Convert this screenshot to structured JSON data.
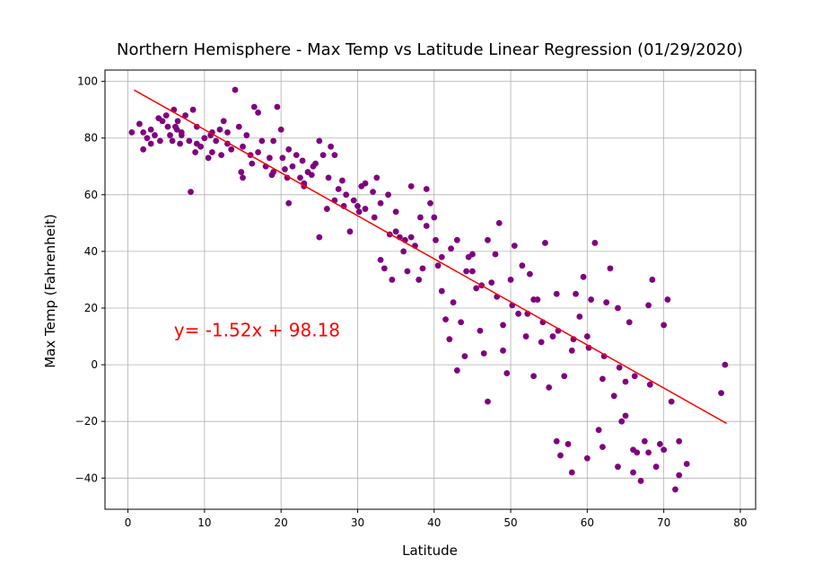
{
  "chart_data": {
    "type": "scatter",
    "title": "Northern Hemisphere - Max Temp vs Latitude Linear Regression (01/29/2020)",
    "xlabel": "Latitude",
    "ylabel": "Max Temp (Fahrenheit)",
    "xlim": [
      -3,
      82
    ],
    "ylim": [
      -51,
      104
    ],
    "xticks": [
      0,
      10,
      20,
      30,
      40,
      50,
      60,
      70,
      80
    ],
    "yticks": [
      -40,
      -20,
      0,
      20,
      40,
      60,
      80,
      100
    ],
    "grid": true,
    "point_color": "#800080",
    "line_color": "#ff0000",
    "regression": {
      "slope": -1.52,
      "intercept": 98.18,
      "x_range": [
        0.8,
        78.2
      ]
    },
    "annotation": {
      "text": "y= -1.52x + 98.18",
      "x": 6,
      "y": 10,
      "color": "#ff0000"
    },
    "points": [
      [
        0.5,
        82
      ],
      [
        1.5,
        85
      ],
      [
        2,
        82
      ],
      [
        2.5,
        80
      ],
      [
        3,
        78
      ],
      [
        3.5,
        81
      ],
      [
        4,
        87
      ],
      [
        4.5,
        86
      ],
      [
        5,
        88
      ],
      [
        5.2,
        84
      ],
      [
        5.5,
        81
      ],
      [
        5.8,
        79
      ],
      [
        6,
        90
      ],
      [
        6.2,
        84
      ],
      [
        6.5,
        86
      ],
      [
        6.8,
        78
      ],
      [
        7,
        82
      ],
      [
        7.5,
        88
      ],
      [
        8,
        79
      ],
      [
        8.2,
        61
      ],
      [
        8.5,
        90
      ],
      [
        9,
        84
      ],
      [
        9.5,
        77
      ],
      [
        10,
        80
      ],
      [
        10.5,
        73
      ],
      [
        11,
        82
      ],
      [
        11.5,
        79
      ],
      [
        12,
        83
      ],
      [
        12.5,
        86
      ],
      [
        13,
        82
      ],
      [
        13.5,
        76
      ],
      [
        14,
        97
      ],
      [
        14.5,
        84
      ],
      [
        15,
        77
      ],
      [
        15.5,
        81
      ],
      [
        16,
        74
      ],
      [
        16.5,
        91
      ],
      [
        17,
        89
      ],
      [
        17.5,
        79
      ],
      [
        18,
        70
      ],
      [
        18.5,
        73
      ],
      [
        19,
        79
      ],
      [
        19.5,
        91
      ],
      [
        20,
        83
      ],
      [
        20.5,
        69
      ],
      [
        20.8,
        66
      ],
      [
        21,
        57
      ],
      [
        21.5,
        70
      ],
      [
        22,
        74
      ],
      [
        22.5,
        66
      ],
      [
        23,
        64
      ],
      [
        23.5,
        68
      ],
      [
        24,
        67
      ],
      [
        24.5,
        71
      ],
      [
        25,
        79
      ],
      [
        25.5,
        74
      ],
      [
        26,
        55
      ],
      [
        26.5,
        77
      ],
      [
        27,
        74
      ],
      [
        27.5,
        62
      ],
      [
        28,
        65
      ],
      [
        28.5,
        60
      ],
      [
        29,
        47
      ],
      [
        29.5,
        58
      ],
      [
        30,
        56
      ],
      [
        30.5,
        63
      ],
      [
        31,
        55
      ],
      [
        32,
        61
      ],
      [
        32.5,
        66
      ],
      [
        33,
        57
      ],
      [
        33.5,
        34
      ],
      [
        34,
        60
      ],
      [
        34.5,
        30
      ],
      [
        35,
        47
      ],
      [
        35.5,
        45
      ],
      [
        36,
        40
      ],
      [
        36.5,
        33
      ],
      [
        37,
        45
      ],
      [
        37.5,
        42
      ],
      [
        38,
        30
      ],
      [
        38.5,
        34
      ],
      [
        39,
        62
      ],
      [
        39.5,
        57
      ],
      [
        40,
        52
      ],
      [
        40.5,
        35
      ],
      [
        41,
        26
      ],
      [
        41.5,
        16
      ],
      [
        42,
        9
      ],
      [
        42.5,
        22
      ],
      [
        43,
        44
      ],
      [
        43.5,
        15
      ],
      [
        44,
        3
      ],
      [
        44.5,
        38
      ],
      [
        45,
        39
      ],
      [
        45.5,
        27
      ],
      [
        46,
        12
      ],
      [
        46.5,
        4
      ],
      [
        47,
        44
      ],
      [
        47.5,
        29
      ],
      [
        48,
        39
      ],
      [
        48.5,
        50
      ],
      [
        49,
        14
      ],
      [
        49.5,
        -3
      ],
      [
        50,
        30
      ],
      [
        50.5,
        42
      ],
      [
        51,
        18
      ],
      [
        51.5,
        35
      ],
      [
        52,
        10
      ],
      [
        52.5,
        32
      ],
      [
        53,
        23
      ],
      [
        53.5,
        23
      ],
      [
        54,
        8
      ],
      [
        54.5,
        43
      ],
      [
        55,
        -8
      ],
      [
        55.5,
        10
      ],
      [
        56,
        25
      ],
      [
        56.5,
        -32
      ],
      [
        57,
        -4
      ],
      [
        57.5,
        -28
      ],
      [
        58,
        5
      ],
      [
        58.5,
        25
      ],
      [
        59,
        17
      ],
      [
        59.5,
        31
      ],
      [
        60,
        -33
      ],
      [
        60.5,
        23
      ],
      [
        61,
        43
      ],
      [
        61.5,
        -23
      ],
      [
        62,
        -29
      ],
      [
        62.5,
        22
      ],
      [
        63,
        34
      ],
      [
        63.5,
        -11
      ],
      [
        64,
        -36
      ],
      [
        64.5,
        -20
      ],
      [
        65,
        -6
      ],
      [
        65.5,
        15
      ],
      [
        66,
        -30
      ],
      [
        66.5,
        -31
      ],
      [
        67,
        -41
      ],
      [
        67.5,
        -27
      ],
      [
        68,
        -31
      ],
      [
        68.5,
        30
      ],
      [
        69,
        -36
      ],
      [
        69.5,
        -28
      ],
      [
        70,
        -30
      ],
      [
        70.5,
        23
      ],
      [
        71,
        -13
      ],
      [
        71.5,
        -44
      ],
      [
        72,
        -27
      ],
      [
        73,
        -35
      ],
      [
        77.5,
        -10
      ],
      [
        78,
        0
      ],
      [
        64,
        20
      ],
      [
        65,
        -18
      ],
      [
        66,
        -38
      ],
      [
        68,
        21
      ],
      [
        70,
        14
      ],
      [
        72,
        -39
      ],
      [
        56,
        -27
      ],
      [
        58,
        -38
      ],
      [
        60,
        10
      ],
      [
        62,
        -5
      ],
      [
        49,
        5
      ],
      [
        47,
        -13
      ],
      [
        53,
        -4
      ],
      [
        45,
        33
      ],
      [
        43,
        -2
      ],
      [
        41,
        38
      ],
      [
        39,
        49
      ],
      [
        37,
        63
      ],
      [
        35,
        54
      ],
      [
        33,
        37
      ],
      [
        31,
        64
      ],
      [
        27,
        58
      ],
      [
        25,
        45
      ],
      [
        23,
        63
      ],
      [
        21,
        76
      ],
      [
        19,
        68
      ],
      [
        17,
        75
      ],
      [
        15,
        66
      ],
      [
        13,
        78
      ],
      [
        11,
        75
      ],
      [
        9,
        78
      ],
      [
        7,
        81
      ],
      [
        3,
        83
      ],
      [
        2,
        76
      ],
      [
        4.2,
        79
      ],
      [
        6.4,
        83
      ],
      [
        8.8,
        75
      ],
      [
        10.8,
        81
      ],
      [
        12.2,
        74
      ],
      [
        14.8,
        68
      ],
      [
        16.2,
        71
      ],
      [
        18.8,
        67
      ],
      [
        20.2,
        73
      ],
      [
        22.8,
        72
      ],
      [
        24.2,
        70
      ],
      [
        26.2,
        66
      ],
      [
        28.2,
        56
      ],
      [
        30.2,
        54
      ],
      [
        32.2,
        52
      ],
      [
        34.2,
        46
      ],
      [
        36.2,
        44
      ],
      [
        38.2,
        52
      ],
      [
        40.2,
        44
      ],
      [
        42.2,
        41
      ],
      [
        44.2,
        33
      ],
      [
        46.2,
        28
      ],
      [
        48.2,
        24
      ],
      [
        50.2,
        21
      ],
      [
        52.2,
        18
      ],
      [
        54.2,
        15
      ],
      [
        56.2,
        12
      ],
      [
        58.2,
        9
      ],
      [
        60.2,
        6
      ],
      [
        62.2,
        3
      ],
      [
        64.2,
        -1
      ],
      [
        66.2,
        -4
      ],
      [
        68.2,
        -7
      ]
    ]
  }
}
